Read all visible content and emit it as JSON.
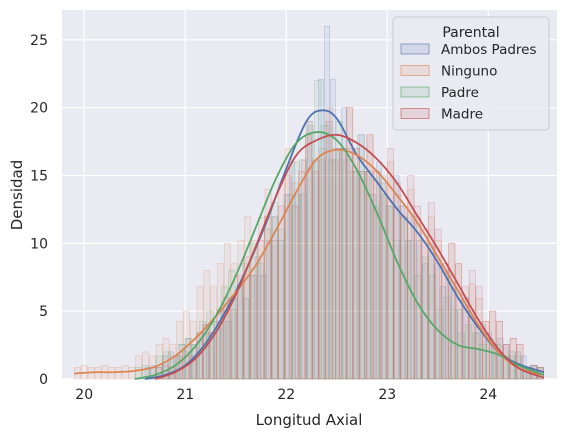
{
  "chart_data": {
    "type": "histogram+kde",
    "title": "",
    "xlabel": "Longitud Axial",
    "ylabel": "Densidad",
    "xlim": [
      19.78,
      24.68
    ],
    "ylim": [
      0,
      27.2
    ],
    "xticks": [
      20,
      21,
      22,
      23,
      24
    ],
    "yticks": [
      0,
      5,
      10,
      15,
      20,
      25
    ],
    "grid": true,
    "background": "#eaeaf2",
    "legend": {
      "title": "Parental",
      "placement": "top-right",
      "entries": [
        "Ambos Padres",
        "Ninguno",
        "Padre",
        "Madre"
      ]
    },
    "series": [
      {
        "name": "Ambos Padres",
        "color": "#4c72b0",
        "kde_x": [
          20.6,
          20.8,
          21.0,
          21.2,
          21.4,
          21.6,
          21.8,
          22.0,
          22.2,
          22.35,
          22.5,
          22.7,
          22.9,
          23.1,
          23.3,
          23.5,
          23.7,
          23.9,
          24.1,
          24.3,
          24.55
        ],
        "kde_y": [
          0.0,
          0.3,
          1.0,
          2.6,
          5.0,
          8.0,
          11.5,
          15.5,
          19.0,
          19.8,
          19.2,
          16.5,
          14.5,
          12.5,
          10.8,
          8.6,
          6.0,
          3.8,
          2.0,
          1.1,
          0.5
        ],
        "hist_values": [
          1,
          2,
          3,
          4,
          5,
          7,
          9,
          12,
          16,
          19,
          26,
          20,
          18,
          16,
          15,
          12,
          10,
          8,
          6,
          4,
          3,
          2,
          1
        ]
      },
      {
        "name": "Ninguno",
        "color": "#dd8452",
        "kde_x": [
          19.9,
          20.1,
          20.3,
          20.5,
          20.7,
          20.9,
          21.1,
          21.3,
          21.5,
          21.7,
          21.9,
          22.1,
          22.3,
          22.5,
          22.7,
          22.9,
          23.1,
          23.3,
          23.5,
          23.7,
          23.9,
          24.1,
          24.3,
          24.55
        ],
        "kde_y": [
          0.4,
          0.5,
          0.5,
          0.6,
          0.9,
          1.7,
          3.0,
          4.6,
          6.4,
          8.4,
          11.0,
          13.8,
          16.2,
          16.9,
          16.5,
          15.3,
          13.5,
          11.5,
          9.0,
          6.5,
          4.0,
          2.0,
          0.8,
          0.3
        ],
        "hist_values": [
          1,
          1,
          1,
          2,
          3,
          5,
          8,
          10,
          12,
          14,
          17,
          19,
          20,
          20,
          18,
          16,
          14,
          12,
          10,
          7,
          5,
          3,
          1
        ]
      },
      {
        "name": "Padre",
        "color": "#55a868",
        "kde_x": [
          20.5,
          20.7,
          20.9,
          21.1,
          21.3,
          21.5,
          21.7,
          21.9,
          22.1,
          22.3,
          22.5,
          22.7,
          22.9,
          23.1,
          23.3,
          23.5,
          23.7,
          23.9,
          24.1,
          24.3,
          24.55
        ],
        "kde_y": [
          0.0,
          0.3,
          1.0,
          2.4,
          4.6,
          7.6,
          11.2,
          14.8,
          17.4,
          18.2,
          17.6,
          15.4,
          12.2,
          8.6,
          5.6,
          3.6,
          2.5,
          2.2,
          1.8,
          1.0,
          0.3
        ],
        "hist_values": [
          1,
          2,
          3,
          5,
          8,
          10,
          13,
          16,
          22,
          19,
          18,
          15,
          12,
          9,
          6,
          4,
          3,
          2,
          1
        ]
      },
      {
        "name": "Madre",
        "color": "#c44e52",
        "kde_x": [
          20.7,
          20.9,
          21.1,
          21.3,
          21.5,
          21.7,
          21.9,
          22.1,
          22.3,
          22.5,
          22.7,
          22.9,
          23.1,
          23.3,
          23.5,
          23.7,
          23.9,
          24.1,
          24.3,
          24.55
        ],
        "kde_y": [
          0.0,
          0.5,
          1.5,
          3.4,
          6.2,
          9.8,
          13.5,
          16.5,
          17.6,
          18.0,
          17.4,
          16.2,
          14.4,
          12.0,
          9.6,
          7.0,
          4.4,
          2.2,
          0.8,
          0.1
        ],
        "hist_values": [
          1,
          2,
          4,
          6,
          9,
          12,
          15,
          18,
          19,
          20,
          18,
          17,
          15,
          13,
          10,
          8,
          5,
          3,
          1
        ]
      }
    ]
  }
}
